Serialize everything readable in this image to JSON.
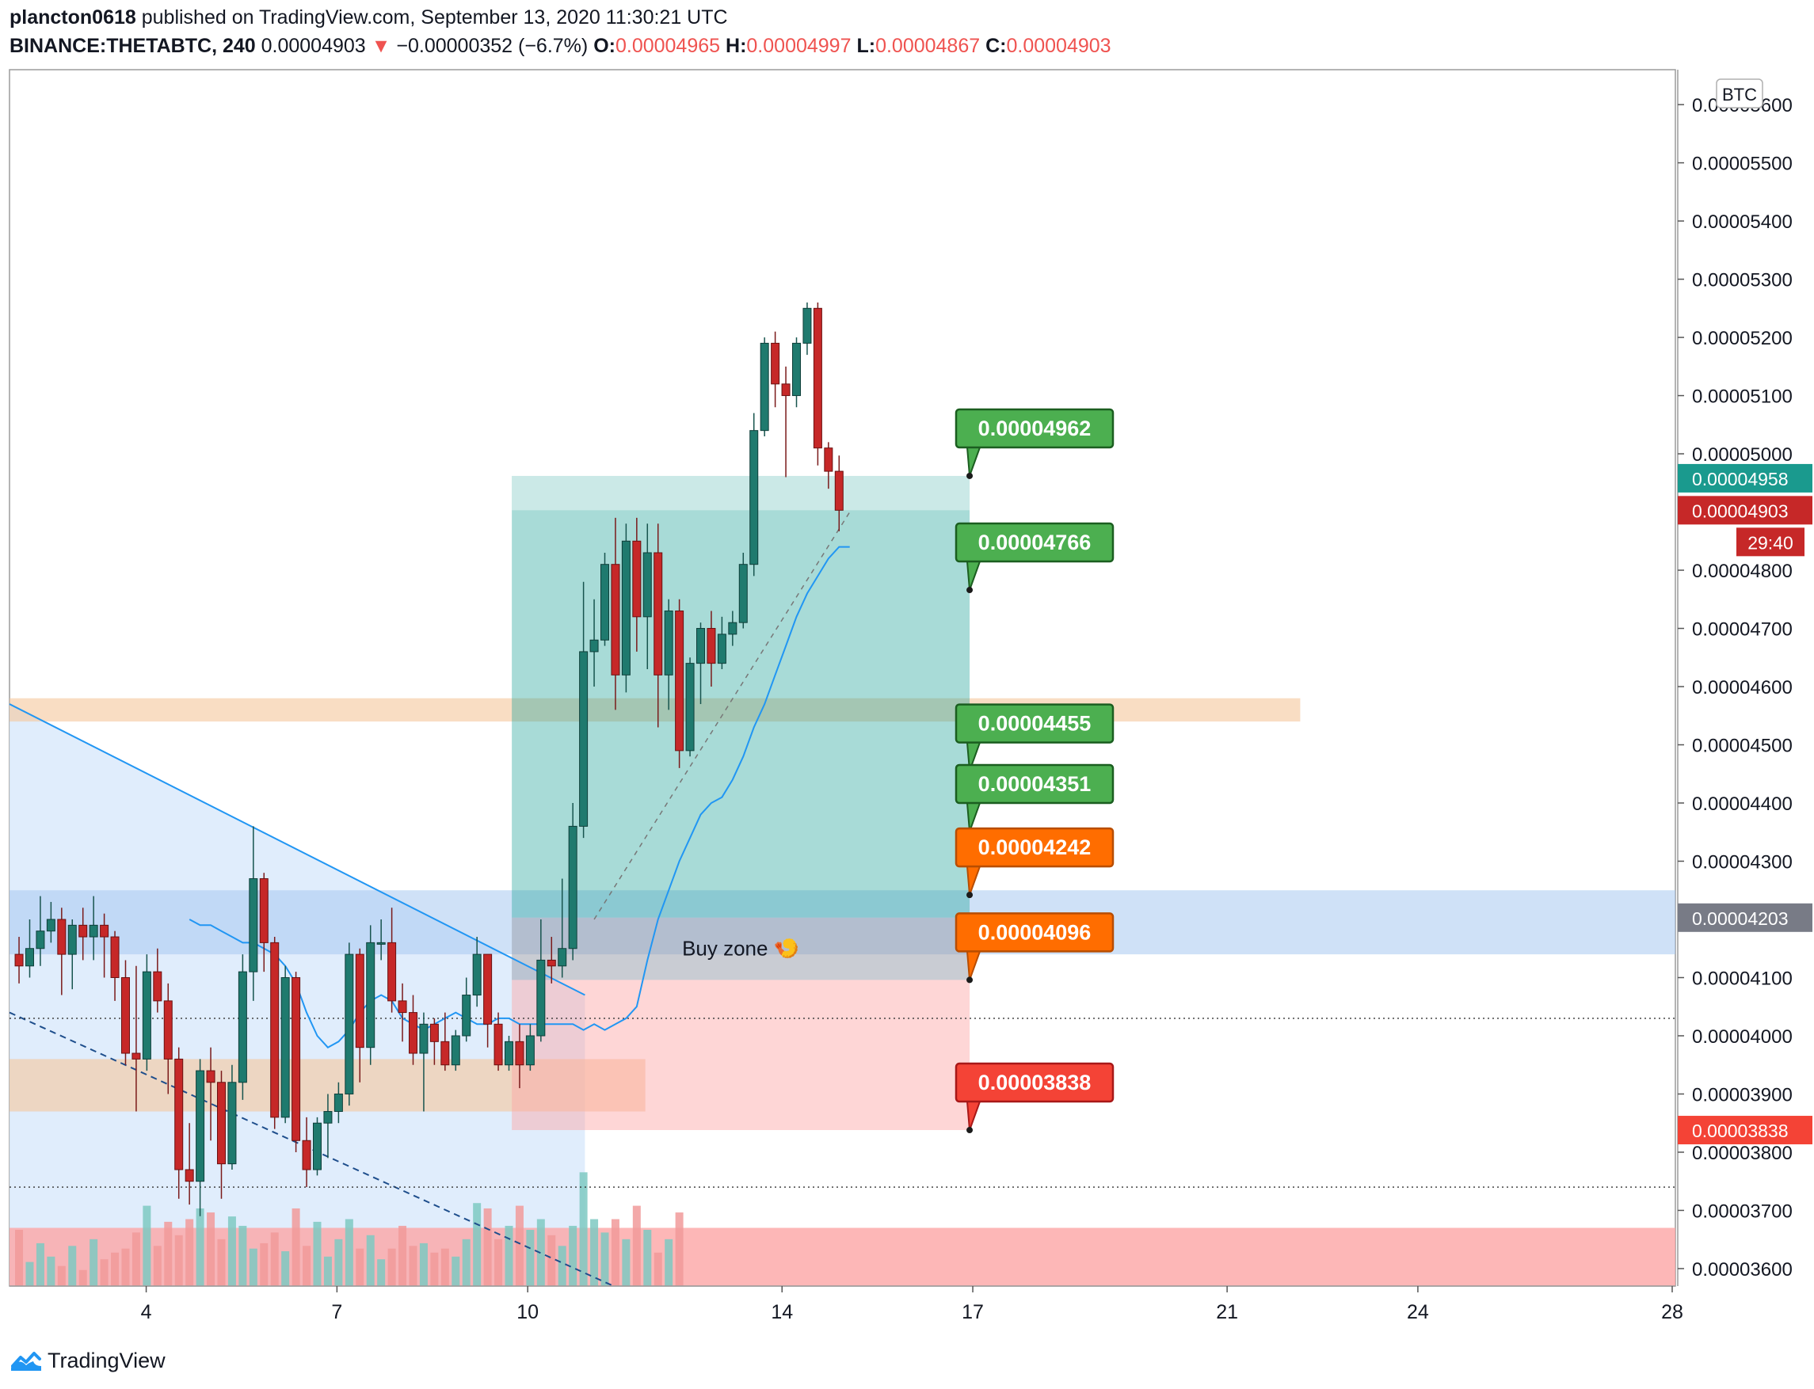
{
  "header": {
    "author": "plancton0618",
    "published_text": "published on TradingView.com, September 13, 2020 11:30:21 UTC",
    "symbol": "BINANCE:THETABTC, 240",
    "last": "0.00004903",
    "change_arrow": "▼",
    "change": "−0.00000352 (−6.7%)",
    "o_label": "O:",
    "o_value": "0.00004965",
    "h_label": "H:",
    "h_value": "0.00004997",
    "l_label": "L:",
    "l_value": "0.00004867",
    "c_label": "C:",
    "c_value": "0.00004903"
  },
  "footer": {
    "brand": "TradingView",
    "icon": "tradingview-cloud-logo-icon"
  },
  "colors": {
    "up": "#26a69a",
    "down": "#ef5350",
    "target": "#4caf50",
    "orange": "#ff6d00",
    "stop": "#f44336",
    "ma": "#2196f3",
    "zone_orange": "#f5c69b",
    "zone_blue": "#a8c8f0"
  },
  "chart_data": {
    "type": "candlestick",
    "symbol": "BINANCE:THETABTC",
    "timeframe": "240",
    "currency_badge": "BTC",
    "y_ticks": [
      "0.00005600",
      "0.00005500",
      "0.00005400",
      "0.00005300",
      "0.00005200",
      "0.00005100",
      "0.00005000",
      "0.00004800",
      "0.00004700",
      "0.00004600",
      "0.00004500",
      "0.00004400",
      "0.00004300",
      "0.00004100",
      "0.00004000",
      "0.00003900",
      "0.00003800",
      "0.00003700",
      "0.00003600"
    ],
    "ylim": [
      3.57e-05,
      5.66e-05
    ],
    "x_ticks": [
      {
        "label": "4",
        "day": 4
      },
      {
        "label": "7",
        "day": 7
      },
      {
        "label": "10",
        "day": 10
      },
      {
        "label": "14",
        "day": 14
      },
      {
        "label": "17",
        "day": 17
      },
      {
        "label": "21",
        "day": 21
      },
      {
        "label": "24",
        "day": 24
      },
      {
        "label": "28",
        "day": 28
      }
    ],
    "xlim_days": [
      1.85,
      28.05
    ],
    "candles": [
      {
        "o": 4.14,
        "c": 4.12,
        "h": 4.17,
        "l": 4.09
      },
      {
        "o": 4.12,
        "c": 4.15,
        "h": 4.2,
        "l": 4.1
      },
      {
        "o": 4.15,
        "c": 4.18,
        "h": 4.24,
        "l": 4.12
      },
      {
        "o": 4.18,
        "c": 4.2,
        "h": 4.23,
        "l": 4.16
      },
      {
        "o": 4.2,
        "c": 4.14,
        "h": 4.22,
        "l": 4.07
      },
      {
        "o": 4.14,
        "c": 4.19,
        "h": 4.2,
        "l": 4.08
      },
      {
        "o": 4.19,
        "c": 4.17,
        "h": 4.22,
        "l": 4.13
      },
      {
        "o": 4.17,
        "c": 4.19,
        "h": 4.24,
        "l": 4.13
      },
      {
        "o": 4.19,
        "c": 4.17,
        "h": 4.21,
        "l": 4.1
      },
      {
        "o": 4.17,
        "c": 4.1,
        "h": 4.18,
        "l": 4.06
      },
      {
        "o": 4.1,
        "c": 3.97,
        "h": 4.13,
        "l": 3.95
      },
      {
        "o": 3.97,
        "c": 3.96,
        "h": 4.12,
        "l": 3.87
      },
      {
        "o": 3.96,
        "c": 4.11,
        "h": 4.14,
        "l": 3.94
      },
      {
        "o": 4.11,
        "c": 4.06,
        "h": 4.15,
        "l": 4.04
      },
      {
        "o": 4.06,
        "c": 3.96,
        "h": 4.09,
        "l": 3.9
      },
      {
        "o": 3.96,
        "c": 3.77,
        "h": 3.98,
        "l": 3.72
      },
      {
        "o": 3.77,
        "c": 3.75,
        "h": 3.85,
        "l": 3.71
      },
      {
        "o": 3.75,
        "c": 3.94,
        "h": 3.96,
        "l": 3.69
      },
      {
        "o": 3.94,
        "c": 3.92,
        "h": 3.98,
        "l": 3.82
      },
      {
        "o": 3.92,
        "c": 3.78,
        "h": 3.94,
        "l": 3.72
      },
      {
        "o": 3.78,
        "c": 3.92,
        "h": 3.95,
        "l": 3.77
      },
      {
        "o": 3.92,
        "c": 4.11,
        "h": 4.14,
        "l": 3.89
      },
      {
        "o": 4.11,
        "c": 4.27,
        "h": 4.36,
        "l": 4.06
      },
      {
        "o": 4.27,
        "c": 4.16,
        "h": 4.28,
        "l": 4.11
      },
      {
        "o": 4.16,
        "c": 3.86,
        "h": 4.17,
        "l": 3.84
      },
      {
        "o": 3.86,
        "c": 4.1,
        "h": 4.12,
        "l": 3.85
      },
      {
        "o": 4.1,
        "c": 3.82,
        "h": 4.11,
        "l": 3.8
      },
      {
        "o": 3.82,
        "c": 3.77,
        "h": 3.86,
        "l": 3.74
      },
      {
        "o": 3.77,
        "c": 3.85,
        "h": 3.86,
        "l": 3.76
      },
      {
        "o": 3.85,
        "c": 3.87,
        "h": 3.9,
        "l": 3.79
      },
      {
        "o": 3.87,
        "c": 3.9,
        "h": 3.92,
        "l": 3.85
      },
      {
        "o": 3.9,
        "c": 4.14,
        "h": 4.16,
        "l": 3.88
      },
      {
        "o": 4.14,
        "c": 3.98,
        "h": 4.15,
        "l": 3.92
      },
      {
        "o": 3.98,
        "c": 4.16,
        "h": 4.19,
        "l": 3.95
      },
      {
        "o": 4.16,
        "c": 4.16,
        "h": 4.2,
        "l": 4.13
      },
      {
        "o": 4.16,
        "c": 4.06,
        "h": 4.22,
        "l": 4.04
      },
      {
        "o": 4.06,
        "c": 4.04,
        "h": 4.09,
        "l": 3.99
      },
      {
        "o": 4.04,
        "c": 3.97,
        "h": 4.07,
        "l": 3.95
      },
      {
        "o": 3.97,
        "c": 4.02,
        "h": 4.04,
        "l": 3.87
      },
      {
        "o": 4.02,
        "c": 3.99,
        "h": 4.03,
        "l": 3.95
      },
      {
        "o": 3.99,
        "c": 3.95,
        "h": 4.04,
        "l": 3.94
      },
      {
        "o": 3.95,
        "c": 4.0,
        "h": 4.01,
        "l": 3.94
      },
      {
        "o": 4.0,
        "c": 4.07,
        "h": 4.1,
        "l": 3.99
      },
      {
        "o": 4.07,
        "c": 4.14,
        "h": 4.17,
        "l": 4.05
      },
      {
        "o": 4.14,
        "c": 4.02,
        "h": 4.14,
        "l": 3.98
      },
      {
        "o": 4.02,
        "c": 3.95,
        "h": 4.04,
        "l": 3.94
      },
      {
        "o": 3.95,
        "c": 3.99,
        "h": 4.0,
        "l": 3.94
      },
      {
        "o": 3.99,
        "c": 3.95,
        "h": 4.02,
        "l": 3.91
      },
      {
        "o": 3.95,
        "c": 4.0,
        "h": 4.02,
        "l": 3.94
      },
      {
        "o": 4.0,
        "c": 4.13,
        "h": 4.2,
        "l": 3.99
      },
      {
        "o": 4.13,
        "c": 4.12,
        "h": 4.17,
        "l": 4.09
      },
      {
        "o": 4.12,
        "c": 4.15,
        "h": 4.27,
        "l": 4.1
      },
      {
        "o": 4.15,
        "c": 4.36,
        "h": 4.4,
        "l": 4.13
      },
      {
        "o": 4.36,
        "c": 4.66,
        "h": 4.78,
        "l": 4.34
      },
      {
        "o": 4.66,
        "c": 4.68,
        "h": 4.75,
        "l": 4.6
      },
      {
        "o": 4.68,
        "c": 4.81,
        "h": 4.83,
        "l": 4.67
      },
      {
        "o": 4.81,
        "c": 4.62,
        "h": 4.89,
        "l": 4.56
      },
      {
        "o": 4.62,
        "c": 4.85,
        "h": 4.88,
        "l": 4.59
      },
      {
        "o": 4.85,
        "c": 4.72,
        "h": 4.89,
        "l": 4.66
      },
      {
        "o": 4.72,
        "c": 4.83,
        "h": 4.88,
        "l": 4.63
      },
      {
        "o": 4.83,
        "c": 4.62,
        "h": 4.88,
        "l": 4.53
      },
      {
        "o": 4.62,
        "c": 4.73,
        "h": 4.75,
        "l": 4.56
      },
      {
        "o": 4.73,
        "c": 4.49,
        "h": 4.75,
        "l": 4.46
      },
      {
        "o": 4.49,
        "c": 4.64,
        "h": 4.65,
        "l": 4.48
      },
      {
        "o": 4.64,
        "c": 4.7,
        "h": 4.71,
        "l": 4.57
      },
      {
        "o": 4.7,
        "c": 4.64,
        "h": 4.73,
        "l": 4.6
      },
      {
        "o": 4.64,
        "c": 4.69,
        "h": 4.72,
        "l": 4.63
      },
      {
        "o": 4.69,
        "c": 4.71,
        "h": 4.73,
        "l": 4.67
      },
      {
        "o": 4.71,
        "c": 4.81,
        "h": 4.83,
        "l": 4.7
      },
      {
        "o": 4.81,
        "c": 5.04,
        "h": 5.07,
        "l": 4.79
      },
      {
        "o": 5.04,
        "c": 5.19,
        "h": 5.2,
        "l": 5.03
      },
      {
        "o": 5.19,
        "c": 5.12,
        "h": 5.21,
        "l": 5.08
      },
      {
        "o": 5.12,
        "c": 5.1,
        "h": 5.15,
        "l": 4.96
      },
      {
        "o": 5.1,
        "c": 5.19,
        "h": 5.2,
        "l": 5.08
      },
      {
        "o": 5.19,
        "c": 5.25,
        "h": 5.26,
        "l": 5.17
      },
      {
        "o": 5.25,
        "c": 5.01,
        "h": 5.26,
        "l": 4.98
      },
      {
        "o": 5.01,
        "c": 4.97,
        "h": 5.02,
        "l": 4.94
      },
      {
        "o": 4.97,
        "c": 4.903,
        "h": 4.997,
        "l": 4.867
      }
    ],
    "moving_average": [
      4.2,
      4.19,
      4.19,
      4.18,
      4.17,
      4.16,
      4.16,
      4.15,
      4.14,
      4.12,
      4.09,
      4.04,
      4.0,
      3.98,
      3.99,
      4.01,
      4.04,
      4.06,
      4.07,
      4.06,
      4.03,
      4.02,
      4.01,
      4.02,
      4.03,
      4.04,
      4.03,
      4.02,
      4.02,
      4.03,
      4.03,
      4.02,
      4.02,
      4.02,
      4.02,
      4.02,
      4.02,
      4.01,
      4.02,
      4.01,
      4.02,
      4.03,
      4.05,
      4.13,
      4.2,
      4.25,
      4.3,
      4.34,
      4.38,
      4.4,
      4.41,
      4.44,
      4.48,
      4.53,
      4.57,
      4.62,
      4.67,
      4.72,
      4.76,
      4.79,
      4.82,
      4.84,
      4.84
    ],
    "targets": [
      {
        "label": "0.00004962",
        "value": 4.962,
        "kind": "target"
      },
      {
        "label": "0.00004766",
        "value": 4.766,
        "kind": "target"
      },
      {
        "label": "0.00004455",
        "value": 4.455,
        "kind": "target"
      },
      {
        "label": "0.00004351",
        "value": 4.351,
        "kind": "target"
      },
      {
        "label": "0.00004242",
        "value": 4.242,
        "kind": "entry"
      },
      {
        "label": "0.00004096",
        "value": 4.096,
        "kind": "entry"
      },
      {
        "label": "0.00003838",
        "value": 3.838,
        "kind": "stop"
      }
    ],
    "annotation": {
      "text": "Buy zone",
      "emoji": "🍤"
    },
    "price_labels": [
      {
        "label": "0.00004958",
        "value": 4.958,
        "kind": "teal"
      },
      {
        "label": "0.00004903",
        "value": 4.903,
        "kind": "last"
      },
      {
        "label": "29:40",
        "value": 4.903,
        "kind": "countdown"
      },
      {
        "label": "0.00004203",
        "value": 4.203,
        "kind": "grey"
      },
      {
        "label": "0.00003838",
        "value": 3.838,
        "kind": "stop"
      }
    ],
    "volume_up_fraction": [
      0.42,
      0.18,
      0.32,
      0.22,
      0.15,
      0.3,
      0.12,
      0.35,
      0.2,
      0.25,
      0.28,
      0.4,
      0.6,
      0.3,
      0.48,
      0.38,
      0.5,
      0.58,
      0.55,
      0.35,
      0.52,
      0.45,
      0.28,
      0.32,
      0.4,
      0.26,
      0.58,
      0.3,
      0.48,
      0.22,
      0.35,
      0.5,
      0.28,
      0.38,
      0.2,
      0.28,
      0.45,
      0.3,
      0.32,
      0.25,
      0.28,
      0.22,
      0.35,
      0.62,
      0.58,
      0.35,
      0.45,
      0.6,
      0.42,
      0.5,
      0.38,
      0.3,
      0.45,
      0.85,
      0.5,
      0.4,
      0.5,
      0.35,
      0.6,
      0.42,
      0.25,
      0.35,
      0.55
    ],
    "volume_down_fraction": [
      0.28,
      0.2,
      0.35,
      0.18,
      0.42,
      0.16,
      0.25,
      0.3,
      0.55,
      0.38,
      0.22,
      0.3,
      0.45,
      0.25,
      0.48,
      0.3,
      0.5,
      0.35,
      0.58,
      0.22,
      0.3,
      0.4,
      0.5,
      0.38,
      0.28,
      0.42,
      0.5,
      0.35,
      0.3,
      0.38,
      0.28,
      0.35,
      0.25,
      0.3,
      0.32,
      0.2,
      0.22,
      0.3,
      0.35,
      0.25,
      0.32,
      0.28,
      0.3,
      0.45,
      0.38,
      0.5,
      0.4,
      0.55,
      0.35,
      0.45,
      0.28,
      0.32,
      0.3,
      0.35,
      0.4,
      0.28,
      0.32,
      0.4,
      0.35,
      0.3,
      0.25,
      0.28,
      0.3
    ]
  }
}
